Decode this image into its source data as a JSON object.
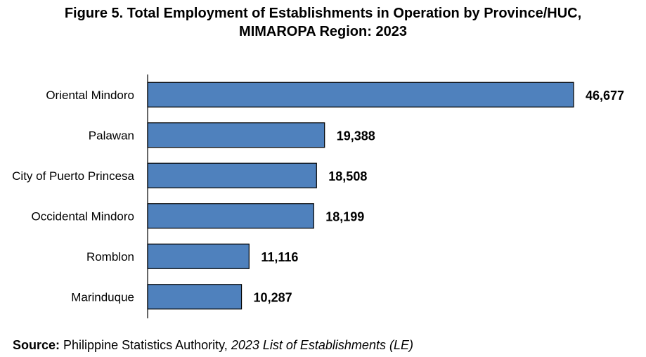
{
  "title_line1": "Figure 5. Total Employment of Establishments in Operation by Province/HUC,",
  "title_line2": "MIMAROPA Region: 2023",
  "source": {
    "label": "Source:",
    "text": " Philippine Statistics Authority, ",
    "italic": "2023 List of Establishments (LE)"
  },
  "colors": {
    "bar": "#4f81bd",
    "bar_border": "#000000"
  },
  "chart_data": {
    "type": "bar",
    "orientation": "horizontal",
    "title": "Figure 5. Total Employment of Establishments in Operation by Province/HUC, MIMAROPA Region: 2023",
    "categories": [
      "Oriental Mindoro",
      "Palawan",
      "City of Puerto Princesa",
      "Occidental Mindoro",
      "Romblon",
      "Marinduque"
    ],
    "values": [
      46677,
      19388,
      18508,
      18199,
      11116,
      10287
    ],
    "value_labels": [
      "46,677",
      "19,388",
      "18,508",
      "18,199",
      "11,116",
      "10,287"
    ],
    "xlabel": "",
    "ylabel": "",
    "xlim": [
      0,
      46677
    ],
    "grid": false,
    "legend": "none"
  }
}
